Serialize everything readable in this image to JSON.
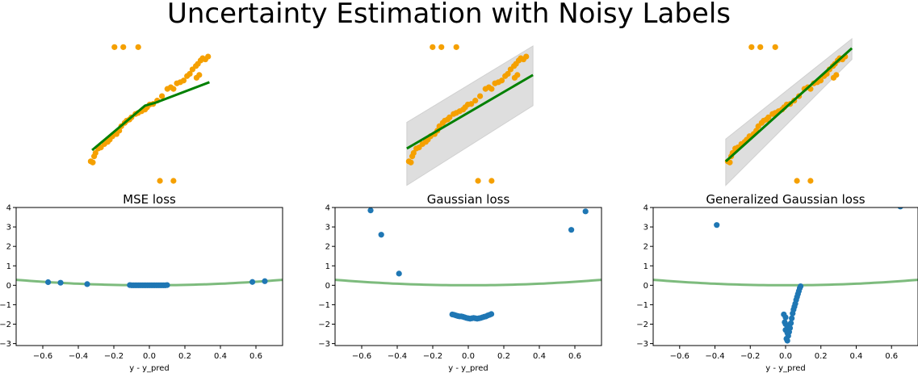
{
  "figure": {
    "title": "Uncertainty Estimation with Noisy Labels",
    "colors": {
      "data_points": "#f5a000",
      "fit_line": "#008000",
      "band": "#d9d9d9",
      "loss_points": "#1f77b4",
      "parabola": "#7dbb7d"
    }
  },
  "chart_data": [
    {
      "type": "scatter",
      "panel": "top-1",
      "title": "",
      "axes_visible": false,
      "points": [
        [
          -0.9,
          -0.95
        ],
        [
          -0.87,
          -0.97
        ],
        [
          -0.85,
          -0.86
        ],
        [
          -0.83,
          -0.8
        ],
        [
          -0.79,
          -0.72
        ],
        [
          -0.75,
          -0.7
        ],
        [
          -0.7,
          -0.64
        ],
        [
          -0.65,
          -0.6
        ],
        [
          -0.62,
          -0.56
        ],
        [
          -0.58,
          -0.5
        ],
        [
          -0.52,
          -0.46
        ],
        [
          -0.48,
          -0.4
        ],
        [
          -0.45,
          -0.32
        ],
        [
          -0.4,
          -0.26
        ],
        [
          -0.37,
          -0.22
        ],
        [
          -0.33,
          -0.2
        ],
        [
          -0.3,
          -0.16
        ],
        [
          -0.24,
          -0.1
        ],
        [
          -0.2,
          -0.08
        ],
        [
          -0.15,
          -0.05
        ],
        [
          -0.1,
          -0.02
        ],
        [
          -0.07,
          0.02
        ],
        [
          -0.03,
          0.07
        ],
        [
          0.02,
          0.08
        ],
        [
          0.08,
          0.14
        ],
        [
          0.15,
          0.22
        ],
        [
          0.23,
          0.35
        ],
        [
          0.28,
          0.38
        ],
        [
          0.32,
          0.35
        ],
        [
          0.37,
          0.45
        ],
        [
          0.42,
          0.47
        ],
        [
          0.47,
          0.5
        ],
        [
          0.52,
          0.58
        ],
        [
          0.56,
          0.62
        ],
        [
          0.6,
          0.7
        ],
        [
          0.65,
          0.76
        ],
        [
          0.68,
          0.8
        ],
        [
          0.72,
          0.86
        ],
        [
          0.75,
          0.9
        ],
        [
          0.79,
          0.88
        ],
        [
          0.83,
          0.93
        ],
        [
          -0.55,
          1.1
        ],
        [
          -0.42,
          1.1
        ],
        [
          -0.2,
          1.1
        ],
        [
          0.12,
          -1.3
        ],
        [
          0.32,
          -1.3
        ],
        [
          0.66,
          0.55
        ],
        [
          0.7,
          0.6
        ]
      ],
      "line": [
        [
          -0.88,
          -0.75
        ],
        [
          -0.1,
          0.05
        ],
        [
          0.05,
          0.1
        ],
        [
          0.85,
          0.47
        ]
      ],
      "band": []
    },
    {
      "type": "scatter",
      "panel": "top-2",
      "title": "",
      "axes_visible": false,
      "points": [
        [
          -0.9,
          -0.95
        ],
        [
          -0.87,
          -0.97
        ],
        [
          -0.85,
          -0.86
        ],
        [
          -0.83,
          -0.8
        ],
        [
          -0.79,
          -0.72
        ],
        [
          -0.75,
          -0.7
        ],
        [
          -0.7,
          -0.64
        ],
        [
          -0.65,
          -0.6
        ],
        [
          -0.62,
          -0.56
        ],
        [
          -0.58,
          -0.5
        ],
        [
          -0.52,
          -0.46
        ],
        [
          -0.48,
          -0.4
        ],
        [
          -0.45,
          -0.32
        ],
        [
          -0.4,
          -0.26
        ],
        [
          -0.37,
          -0.22
        ],
        [
          -0.33,
          -0.2
        ],
        [
          -0.3,
          -0.16
        ],
        [
          -0.24,
          -0.1
        ],
        [
          -0.2,
          -0.08
        ],
        [
          -0.15,
          -0.05
        ],
        [
          -0.1,
          -0.02
        ],
        [
          -0.07,
          0.02
        ],
        [
          -0.03,
          0.07
        ],
        [
          0.02,
          0.08
        ],
        [
          0.08,
          0.14
        ],
        [
          0.15,
          0.22
        ],
        [
          0.23,
          0.35
        ],
        [
          0.28,
          0.38
        ],
        [
          0.32,
          0.35
        ],
        [
          0.37,
          0.45
        ],
        [
          0.42,
          0.47
        ],
        [
          0.47,
          0.5
        ],
        [
          0.52,
          0.58
        ],
        [
          0.56,
          0.62
        ],
        [
          0.6,
          0.7
        ],
        [
          0.65,
          0.76
        ],
        [
          0.68,
          0.8
        ],
        [
          0.72,
          0.86
        ],
        [
          0.75,
          0.9
        ],
        [
          0.79,
          0.88
        ],
        [
          0.83,
          0.93
        ],
        [
          -0.55,
          1.1
        ],
        [
          -0.42,
          1.1
        ],
        [
          -0.2,
          1.1
        ],
        [
          0.12,
          -1.3
        ],
        [
          0.32,
          -1.3
        ],
        [
          0.66,
          0.55
        ],
        [
          0.7,
          0.6
        ]
      ],
      "line": [
        [
          -0.93,
          -0.72
        ],
        [
          0.93,
          0.6
        ]
      ],
      "band": [
        [
          -0.93,
          -0.25,
          -1.38
        ],
        [
          0.93,
          1.12,
          0.05
        ]
      ]
    },
    {
      "type": "scatter",
      "panel": "top-3",
      "title": "",
      "axes_visible": false,
      "points": [
        [
          -0.9,
          -0.95
        ],
        [
          -0.87,
          -0.97
        ],
        [
          -0.85,
          -0.86
        ],
        [
          -0.83,
          -0.8
        ],
        [
          -0.79,
          -0.72
        ],
        [
          -0.75,
          -0.7
        ],
        [
          -0.7,
          -0.64
        ],
        [
          -0.65,
          -0.6
        ],
        [
          -0.62,
          -0.56
        ],
        [
          -0.58,
          -0.5
        ],
        [
          -0.52,
          -0.46
        ],
        [
          -0.48,
          -0.4
        ],
        [
          -0.45,
          -0.32
        ],
        [
          -0.4,
          -0.26
        ],
        [
          -0.37,
          -0.22
        ],
        [
          -0.33,
          -0.2
        ],
        [
          -0.3,
          -0.16
        ],
        [
          -0.24,
          -0.1
        ],
        [
          -0.2,
          -0.08
        ],
        [
          -0.15,
          -0.05
        ],
        [
          -0.1,
          -0.02
        ],
        [
          -0.07,
          0.02
        ],
        [
          -0.03,
          0.07
        ],
        [
          0.02,
          0.08
        ],
        [
          0.08,
          0.14
        ],
        [
          0.15,
          0.22
        ],
        [
          0.23,
          0.35
        ],
        [
          0.28,
          0.38
        ],
        [
          0.32,
          0.35
        ],
        [
          0.37,
          0.45
        ],
        [
          0.42,
          0.47
        ],
        [
          0.47,
          0.5
        ],
        [
          0.52,
          0.58
        ],
        [
          0.56,
          0.62
        ],
        [
          0.6,
          0.7
        ],
        [
          0.65,
          0.76
        ],
        [
          0.68,
          0.8
        ],
        [
          0.72,
          0.86
        ],
        [
          0.75,
          0.9
        ],
        [
          0.79,
          0.88
        ],
        [
          0.83,
          0.93
        ],
        [
          -0.55,
          1.1
        ],
        [
          -0.42,
          1.1
        ],
        [
          -0.2,
          1.1
        ],
        [
          0.12,
          -1.3
        ],
        [
          0.32,
          -1.3
        ],
        [
          0.66,
          0.55
        ],
        [
          0.7,
          0.6
        ]
      ],
      "line": [
        [
          -0.93,
          -0.95
        ],
        [
          0.93,
          1.08
        ]
      ],
      "band": [
        [
          -0.93,
          -0.55,
          -1.38
        ],
        [
          0.93,
          1.25,
          0.88
        ]
      ]
    },
    {
      "type": "scatter",
      "panel": "bottom-1",
      "title": "MSE loss",
      "xlabel": "y - y_pred",
      "xlim": [
        -0.75,
        0.75
      ],
      "ylim": [
        -3.1,
        4.0
      ],
      "xticks": [
        "−0.6",
        "−0.4",
        "−0.2",
        "0.0",
        "0.2",
        "0.4",
        "0.6"
      ],
      "xtick_values": [
        -0.6,
        -0.4,
        -0.2,
        0.0,
        0.2,
        0.4,
        0.6
      ],
      "yticks": [
        "−3",
        "−2",
        "−1",
        "0",
        "1",
        "2",
        "3",
        "4"
      ],
      "ytick_values": [
        -3,
        -2,
        -1,
        0,
        1,
        2,
        3,
        4
      ],
      "curve": "parabola",
      "curve_coef": 0.5,
      "points": [
        [
          -0.57,
          0.16
        ],
        [
          -0.5,
          0.13
        ],
        [
          -0.35,
          0.06
        ],
        [
          -0.11,
          0.01
        ],
        [
          -0.1,
          0.0
        ],
        [
          -0.09,
          0.0
        ],
        [
          -0.08,
          0.0
        ],
        [
          -0.07,
          0.0
        ],
        [
          -0.06,
          0.0
        ],
        [
          -0.05,
          0.0
        ],
        [
          -0.04,
          0.0
        ],
        [
          -0.03,
          0.0
        ],
        [
          -0.02,
          0.0
        ],
        [
          -0.01,
          0.0
        ],
        [
          0.0,
          0.0
        ],
        [
          0.01,
          0.0
        ],
        [
          0.02,
          0.0
        ],
        [
          0.03,
          0.0
        ],
        [
          0.04,
          0.0
        ],
        [
          0.05,
          0.0
        ],
        [
          0.06,
          0.0
        ],
        [
          0.07,
          0.0
        ],
        [
          0.08,
          0.0
        ],
        [
          0.09,
          0.0
        ],
        [
          0.1,
          0.01
        ],
        [
          0.58,
          0.17
        ],
        [
          0.65,
          0.21
        ]
      ]
    },
    {
      "type": "scatter",
      "panel": "bottom-2",
      "title": "Gaussian loss",
      "xlabel": "y - y_pred",
      "xlim": [
        -0.75,
        0.75
      ],
      "ylim": [
        -3.1,
        4.0
      ],
      "xticks": [
        "−0.6",
        "−0.4",
        "−0.2",
        "0.0",
        "0.2",
        "0.4",
        "0.6"
      ],
      "xtick_values": [
        -0.6,
        -0.4,
        -0.2,
        0.0,
        0.2,
        0.4,
        0.6
      ],
      "yticks": [
        "−3",
        "−2",
        "−1",
        "0",
        "1",
        "2",
        "3",
        "4"
      ],
      "ytick_values": [
        -3,
        -2,
        -1,
        0,
        1,
        2,
        3,
        4
      ],
      "curve": "parabola",
      "curve_coef": 0.5,
      "points": [
        [
          -0.55,
          3.85
        ],
        [
          -0.49,
          2.6
        ],
        [
          -0.39,
          0.6
        ],
        [
          0.58,
          2.85
        ],
        [
          0.66,
          3.8
        ],
        [
          -0.09,
          -1.5
        ],
        [
          -0.08,
          -1.52
        ],
        [
          -0.07,
          -1.55
        ],
        [
          -0.06,
          -1.58
        ],
        [
          -0.05,
          -1.6
        ],
        [
          -0.04,
          -1.6
        ],
        [
          -0.03,
          -1.62
        ],
        [
          -0.02,
          -1.65
        ],
        [
          -0.01,
          -1.68
        ],
        [
          0.0,
          -1.7
        ],
        [
          0.01,
          -1.72
        ],
        [
          0.02,
          -1.7
        ],
        [
          0.03,
          -1.68
        ],
        [
          0.04,
          -1.7
        ],
        [
          0.05,
          -1.72
        ],
        [
          0.06,
          -1.7
        ],
        [
          0.07,
          -1.68
        ],
        [
          0.08,
          -1.65
        ],
        [
          0.09,
          -1.62
        ],
        [
          0.1,
          -1.6
        ],
        [
          0.11,
          -1.55
        ],
        [
          0.12,
          -1.52
        ],
        [
          0.13,
          -1.48
        ]
      ]
    },
    {
      "type": "scatter",
      "panel": "bottom-3",
      "title": "Generalized Gaussian loss",
      "xlabel": "y - y_pred",
      "xlim": [
        -0.75,
        0.75
      ],
      "ylim": [
        -3.1,
        4.0
      ],
      "xticks": [
        "−0.6",
        "−0.4",
        "−0.2",
        "0.0",
        "0.2",
        "0.4",
        "0.6"
      ],
      "xtick_values": [
        -0.6,
        -0.4,
        -0.2,
        0.0,
        0.2,
        0.4,
        0.6
      ],
      "yticks": [
        "−3",
        "−2",
        "−1",
        "0",
        "1",
        "2",
        "3",
        "4"
      ],
      "ytick_values": [
        -3,
        -2,
        -1,
        0,
        1,
        2,
        3,
        4
      ],
      "curve": "parabola",
      "curve_coef": 0.5,
      "points": [
        [
          -0.39,
          3.1
        ],
        [
          0.65,
          4.05
        ],
        [
          -0.01,
          -1.5
        ],
        [
          0.0,
          -1.65
        ],
        [
          -0.005,
          -1.9
        ],
        [
          0.0,
          -2.0
        ],
        [
          0.01,
          -2.1
        ],
        [
          0.02,
          -2.05
        ],
        [
          0.0,
          -2.3
        ],
        [
          0.01,
          -2.45
        ],
        [
          0.015,
          -2.6
        ],
        [
          0.005,
          -2.75
        ],
        [
          0.01,
          -2.85
        ],
        [
          0.02,
          -2.4
        ],
        [
          0.025,
          -2.2
        ],
        [
          0.03,
          -1.95
        ],
        [
          0.035,
          -1.7
        ],
        [
          0.04,
          -1.45
        ],
        [
          0.045,
          -1.25
        ],
        [
          0.05,
          -1.1
        ],
        [
          0.055,
          -0.95
        ],
        [
          0.06,
          -0.75
        ],
        [
          0.065,
          -0.6
        ],
        [
          0.07,
          -0.45
        ],
        [
          0.075,
          -0.3
        ],
        [
          0.08,
          -0.15
        ],
        [
          0.085,
          -0.05
        ]
      ]
    }
  ]
}
